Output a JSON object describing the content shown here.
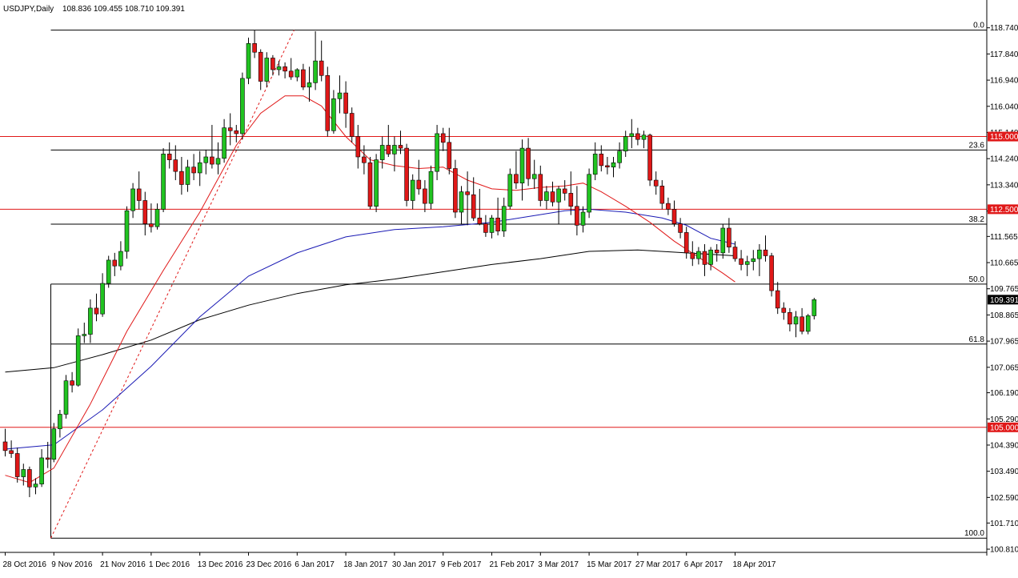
{
  "header": {
    "symbol": "USDJPY,Daily",
    "ohlc": "108.836 109.455 108.710 109.391"
  },
  "colors": {
    "bull": "#21c321",
    "bear": "#e01818",
    "ema_fast": "#e01818",
    "ema_mid": "#1a1ab4",
    "ema_slow": "#000000",
    "level_line": "#e01818",
    "fib_line": "#000000",
    "background": "#ffffff"
  },
  "chart_data": {
    "type": "candlestick",
    "y_range": [
      100.7,
      119.2
    ],
    "y_ticks": [
      118.74,
      117.84,
      116.94,
      116.04,
      115.14,
      114.24,
      113.34,
      112.44,
      111.565,
      110.665,
      109.765,
      108.865,
      107.965,
      107.065,
      106.19,
      105.29,
      104.39,
      103.49,
      102.59,
      101.71,
      100.81
    ],
    "y_tick_labels": [
      "118.740",
      "117.840",
      "116.940",
      "116.040",
      "115.140",
      "114.240",
      "113.340",
      "112.440",
      "111.565",
      "110.665",
      "109.765",
      "108.865",
      "107.965",
      "107.065",
      "106.190",
      "105.290",
      "104.390",
      "103.490",
      "102.590",
      "101.710",
      "100.810"
    ],
    "x_labels": [
      "28 Oct 2016",
      "9 Nov 2016",
      "21 Nov 2016",
      "1 Dec 2016",
      "13 Dec 2016",
      "23 Dec 2016",
      "6 Jan 2017",
      "18 Jan 2017",
      "30 Jan 2017",
      "9 Feb 2017",
      "21 Feb 2017",
      "3 Mar 2017",
      "15 Mar 2017",
      "27 Mar 2017",
      "6 Apr 2017",
      "18 Apr 2017"
    ],
    "x_label_bar_index": [
      0,
      8,
      16,
      24,
      32,
      40,
      48,
      56,
      64,
      72,
      80,
      88,
      96,
      104,
      112,
      120
    ],
    "last_price": 109.391,
    "last_price_label": "109.391",
    "horizontal_levels": [
      {
        "value": 115.0,
        "label": "115.000"
      },
      {
        "value": 112.5,
        "label": "112.500"
      },
      {
        "value": 105.0,
        "label": "105.000"
      }
    ],
    "fibonacci": {
      "high": 118.66,
      "low": 101.19,
      "levels": [
        {
          "ratio": 0.0,
          "label": "0.0"
        },
        {
          "ratio": 0.236,
          "label": "23.6"
        },
        {
          "ratio": 0.382,
          "label": "38.2"
        },
        {
          "ratio": 0.5,
          "label": "50.0"
        },
        {
          "ratio": 0.618,
          "label": "61.8"
        },
        {
          "ratio": 1.0,
          "label": "100.0"
        }
      ]
    },
    "candles": [
      [
        104.5,
        104.95,
        104.0,
        104.2
      ],
      [
        104.2,
        104.55,
        103.95,
        104.1
      ],
      [
        104.1,
        104.3,
        103.1,
        103.3
      ],
      [
        103.3,
        103.75,
        103.0,
        103.55
      ],
      [
        103.55,
        103.65,
        102.6,
        102.95
      ],
      [
        102.95,
        103.25,
        102.7,
        103.05
      ],
      [
        103.05,
        104.25,
        102.95,
        103.95
      ],
      [
        103.95,
        104.5,
        103.6,
        103.9
      ],
      [
        103.9,
        105.15,
        103.8,
        104.95
      ],
      [
        104.95,
        105.6,
        104.65,
        105.45
      ],
      [
        105.45,
        106.8,
        105.3,
        106.6
      ],
      [
        106.6,
        106.9,
        106.2,
        106.45
      ],
      [
        106.45,
        108.4,
        106.4,
        108.15
      ],
      [
        108.15,
        108.6,
        107.9,
        108.2
      ],
      [
        108.2,
        109.4,
        107.9,
        109.1
      ],
      [
        109.1,
        109.6,
        108.65,
        108.9
      ],
      [
        108.9,
        110.3,
        108.8,
        109.95
      ],
      [
        109.95,
        110.9,
        109.8,
        110.75
      ],
      [
        110.75,
        111.0,
        110.2,
        110.55
      ],
      [
        110.55,
        111.4,
        110.4,
        111.05
      ],
      [
        111.05,
        112.6,
        110.8,
        112.45
      ],
      [
        112.45,
        113.4,
        112.2,
        113.2
      ],
      [
        113.2,
        113.8,
        112.5,
        112.8
      ],
      [
        112.8,
        113.1,
        111.6,
        112.0
      ],
      [
        112.0,
        112.7,
        111.7,
        111.9
      ],
      [
        111.9,
        112.7,
        111.8,
        112.5
      ],
      [
        112.5,
        114.6,
        112.4,
        114.4
      ],
      [
        114.4,
        114.8,
        113.9,
        114.2
      ],
      [
        114.2,
        114.7,
        113.5,
        113.8
      ],
      [
        113.8,
        114.3,
        113.0,
        113.35
      ],
      [
        113.35,
        114.2,
        113.1,
        113.95
      ],
      [
        113.95,
        114.4,
        113.5,
        113.75
      ],
      [
        113.75,
        114.5,
        113.3,
        114.1
      ],
      [
        114.1,
        114.55,
        113.7,
        114.3
      ],
      [
        114.3,
        115.4,
        113.9,
        114.05
      ],
      [
        114.05,
        114.8,
        113.7,
        114.25
      ],
      [
        114.25,
        115.6,
        114.1,
        115.3
      ],
      [
        115.3,
        115.8,
        114.7,
        115.2
      ],
      [
        115.2,
        115.4,
        114.8,
        115.1
      ],
      [
        115.1,
        117.2,
        114.9,
        117.0
      ],
      [
        117.0,
        118.4,
        116.8,
        118.2
      ],
      [
        118.2,
        118.66,
        117.7,
        117.9
      ],
      [
        117.9,
        118.0,
        116.6,
        116.9
      ],
      [
        116.9,
        117.9,
        116.7,
        117.7
      ],
      [
        117.7,
        117.8,
        117.1,
        117.3
      ],
      [
        117.3,
        117.6,
        117.1,
        117.4
      ],
      [
        117.4,
        117.55,
        117.0,
        117.25
      ],
      [
        117.25,
        117.7,
        116.95,
        117.05
      ],
      [
        117.05,
        117.35,
        116.9,
        117.3
      ],
      [
        117.3,
        117.5,
        116.6,
        116.7
      ],
      [
        116.7,
        117.4,
        116.2,
        116.85
      ],
      [
        116.85,
        118.62,
        116.6,
        117.6
      ],
      [
        117.6,
        118.3,
        116.9,
        117.1
      ],
      [
        117.1,
        117.4,
        115.0,
        115.2
      ],
      [
        115.2,
        116.6,
        115.1,
        116.3
      ],
      [
        116.3,
        117.1,
        115.8,
        116.5
      ],
      [
        116.5,
        116.9,
        115.3,
        115.8
      ],
      [
        115.8,
        116.0,
        114.8,
        115.0
      ],
      [
        115.0,
        115.4,
        113.9,
        114.3
      ],
      [
        114.3,
        114.7,
        113.7,
        114.1
      ],
      [
        114.1,
        114.3,
        112.5,
        112.6
      ],
      [
        112.6,
        114.4,
        112.4,
        114.2
      ],
      [
        114.2,
        115.0,
        113.9,
        114.7
      ],
      [
        114.7,
        115.4,
        114.3,
        114.4
      ],
      [
        114.4,
        115.0,
        113.8,
        114.7
      ],
      [
        114.7,
        115.2,
        114.4,
        114.6
      ],
      [
        114.6,
        114.75,
        112.6,
        112.8
      ],
      [
        112.8,
        113.7,
        112.5,
        113.5
      ],
      [
        113.5,
        114.2,
        113.0,
        113.2
      ],
      [
        113.2,
        113.5,
        112.4,
        112.7
      ],
      [
        112.7,
        114.0,
        112.5,
        113.8
      ],
      [
        113.8,
        115.4,
        113.5,
        115.1
      ],
      [
        115.1,
        115.3,
        114.5,
        114.8
      ],
      [
        114.8,
        115.3,
        113.7,
        113.9
      ],
      [
        113.9,
        114.2,
        112.2,
        112.4
      ],
      [
        112.4,
        113.3,
        112.0,
        113.1
      ],
      [
        113.1,
        113.8,
        111.95,
        113.0
      ],
      [
        113.0,
        113.6,
        112.1,
        112.2
      ],
      [
        112.2,
        113.2,
        111.95,
        112.0
      ],
      [
        112.0,
        112.3,
        111.55,
        111.7
      ],
      [
        111.7,
        112.3,
        111.5,
        112.2
      ],
      [
        112.2,
        112.9,
        111.6,
        111.75
      ],
      [
        111.75,
        112.9,
        111.55,
        112.6
      ],
      [
        112.6,
        113.9,
        112.5,
        113.7
      ],
      [
        113.7,
        114.5,
        113.2,
        113.4
      ],
      [
        113.4,
        114.9,
        112.8,
        114.6
      ],
      [
        114.6,
        114.95,
        113.3,
        113.55
      ],
      [
        113.55,
        114.2,
        113.2,
        113.7
      ],
      [
        113.7,
        114.0,
        112.6,
        112.8
      ],
      [
        112.8,
        113.3,
        112.5,
        113.1
      ],
      [
        113.1,
        113.45,
        112.6,
        112.75
      ],
      [
        112.75,
        113.3,
        112.0,
        113.2
      ],
      [
        113.2,
        113.5,
        112.8,
        113.05
      ],
      [
        113.05,
        113.8,
        112.3,
        112.6
      ],
      [
        112.6,
        113.3,
        111.6,
        111.95
      ],
      [
        111.95,
        112.6,
        111.7,
        112.4
      ],
      [
        112.4,
        113.9,
        112.2,
        113.7
      ],
      [
        113.7,
        114.8,
        113.5,
        114.4
      ],
      [
        114.4,
        114.7,
        113.8,
        114.0
      ],
      [
        114.0,
        114.3,
        113.7,
        113.95
      ],
      [
        113.95,
        114.3,
        113.6,
        114.1
      ],
      [
        114.1,
        114.8,
        113.9,
        114.5
      ],
      [
        114.5,
        115.2,
        114.3,
        115.0
      ],
      [
        115.0,
        115.6,
        114.6,
        115.1
      ],
      [
        115.1,
        115.3,
        114.7,
        114.9
      ],
      [
        114.9,
        115.2,
        114.6,
        115.05
      ],
      [
        115.05,
        115.1,
        113.3,
        113.5
      ],
      [
        113.5,
        113.8,
        113.0,
        113.3
      ],
      [
        113.3,
        113.5,
        112.5,
        112.7
      ],
      [
        112.7,
        112.9,
        112.3,
        112.5
      ],
      [
        112.5,
        112.8,
        111.9,
        112.0
      ],
      [
        112.0,
        112.2,
        111.5,
        111.7
      ],
      [
        111.7,
        111.9,
        110.8,
        111.0
      ],
      [
        111.0,
        111.4,
        110.55,
        110.8
      ],
      [
        110.8,
        111.2,
        110.6,
        111.05
      ],
      [
        111.05,
        111.3,
        110.2,
        110.6
      ],
      [
        110.6,
        111.2,
        110.4,
        111.1
      ],
      [
        111.1,
        111.3,
        110.7,
        111.0
      ],
      [
        111.0,
        112.0,
        110.8,
        111.85
      ],
      [
        111.85,
        112.2,
        111.0,
        111.2
      ],
      [
        111.2,
        111.4,
        110.7,
        110.8
      ],
      [
        110.8,
        111.1,
        110.4,
        110.6
      ],
      [
        110.6,
        110.9,
        110.2,
        110.7
      ],
      [
        110.7,
        111.1,
        110.4,
        110.8
      ],
      [
        110.8,
        111.3,
        110.2,
        111.1
      ],
      [
        111.1,
        111.6,
        110.7,
        110.9
      ],
      [
        110.9,
        111.0,
        109.5,
        109.7
      ],
      [
        109.7,
        110.0,
        108.9,
        109.1
      ],
      [
        109.1,
        109.3,
        108.7,
        108.95
      ],
      [
        108.95,
        109.1,
        108.3,
        108.55
      ],
      [
        108.55,
        109.0,
        108.1,
        108.8
      ],
      [
        108.8,
        109.1,
        108.2,
        108.3
      ],
      [
        108.3,
        108.9,
        108.2,
        108.84
      ],
      [
        108.836,
        109.455,
        108.71,
        109.391
      ]
    ],
    "ema_fast_curve": [
      [
        0,
        103.35
      ],
      [
        4,
        103.1
      ],
      [
        8,
        103.6
      ],
      [
        14,
        105.8
      ],
      [
        20,
        108.3
      ],
      [
        26,
        110.4
      ],
      [
        32,
        112.4
      ],
      [
        38,
        114.7
      ],
      [
        42,
        115.8
      ],
      [
        46,
        116.4
      ],
      [
        49,
        116.4
      ],
      [
        52,
        116.05
      ],
      [
        56,
        115.0
      ],
      [
        60,
        114.2
      ],
      [
        64,
        114.0
      ],
      [
        68,
        113.9
      ],
      [
        72,
        113.95
      ],
      [
        76,
        113.5
      ],
      [
        80,
        113.2
      ],
      [
        84,
        113.15
      ],
      [
        88,
        113.25
      ],
      [
        92,
        113.3
      ],
      [
        95,
        113.4
      ],
      [
        98,
        113.1
      ],
      [
        102,
        112.6
      ],
      [
        106,
        112.05
      ],
      [
        110,
        111.4
      ],
      [
        114,
        110.85
      ],
      [
        118,
        110.3
      ],
      [
        120,
        110.0
      ]
    ],
    "ema_mid_curve": [
      [
        0,
        104.25
      ],
      [
        8,
        104.4
      ],
      [
        16,
        105.6
      ],
      [
        24,
        107.1
      ],
      [
        32,
        108.8
      ],
      [
        40,
        110.2
      ],
      [
        48,
        111.0
      ],
      [
        56,
        111.55
      ],
      [
        64,
        111.8
      ],
      [
        72,
        111.9
      ],
      [
        80,
        112.05
      ],
      [
        86,
        112.25
      ],
      [
        92,
        112.45
      ],
      [
        96,
        112.5
      ],
      [
        102,
        112.4
      ],
      [
        108,
        112.2
      ],
      [
        112,
        111.95
      ],
      [
        116,
        111.5
      ],
      [
        120,
        111.3
      ]
    ],
    "ema_slow_curve": [
      [
        0,
        106.9
      ],
      [
        8,
        107.05
      ],
      [
        16,
        107.5
      ],
      [
        24,
        108.0
      ],
      [
        32,
        108.7
      ],
      [
        40,
        109.2
      ],
      [
        48,
        109.6
      ],
      [
        56,
        109.9
      ],
      [
        64,
        110.1
      ],
      [
        72,
        110.35
      ],
      [
        80,
        110.6
      ],
      [
        88,
        110.8
      ],
      [
        96,
        111.05
      ],
      [
        104,
        111.1
      ],
      [
        112,
        111.0
      ],
      [
        120,
        110.9
      ]
    ]
  }
}
